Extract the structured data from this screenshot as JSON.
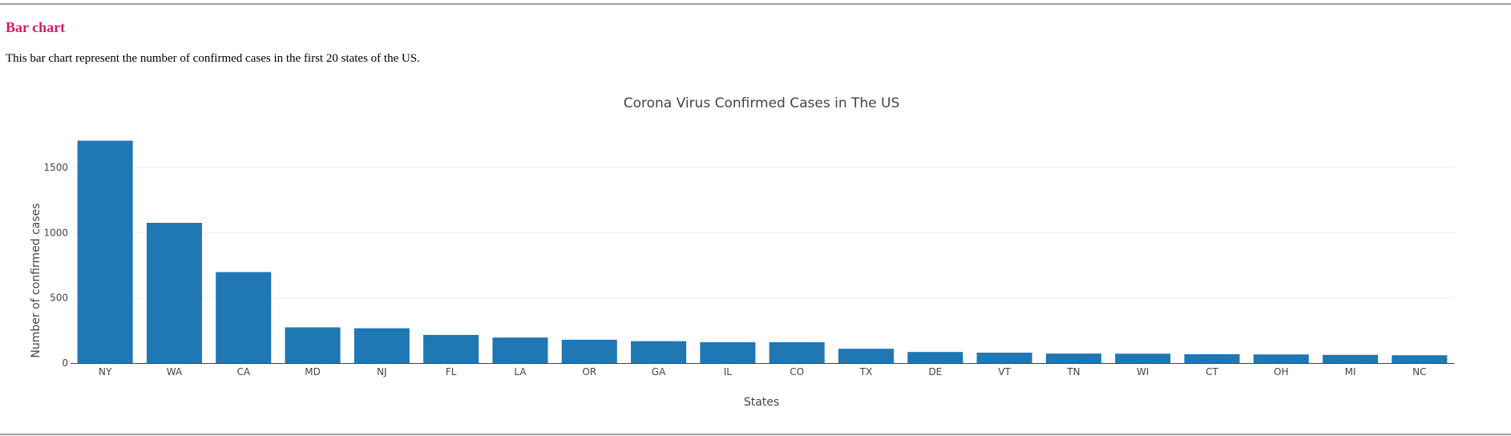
{
  "section": {
    "title": "Bar chart",
    "description": "This bar chart represent the number of confirmed cases in the first 20 states of the US."
  },
  "colors": {
    "bar": "#1f77b4",
    "title_text": "#444444",
    "section_title": "#d81b60",
    "grid": "#eeeeee"
  },
  "chart_data": {
    "type": "bar",
    "title": "Corona Virus Confirmed Cases in The US",
    "xlabel": "States",
    "ylabel": "Number of confirmed cases",
    "ylim": [
      0,
      1900
    ],
    "yticks": [
      0,
      500,
      1000,
      1500
    ],
    "grid": true,
    "categories": [
      "NY",
      "WA",
      "CA",
      "MD",
      "NJ",
      "FL",
      "LA",
      "OR",
      "GA",
      "IL",
      "CO",
      "TX",
      "DE",
      "VT",
      "TN",
      "WI",
      "CT",
      "OH",
      "MI",
      "NC"
    ],
    "values": [
      1706,
      1076,
      698,
      274,
      267,
      216,
      196,
      179,
      168,
      160,
      160,
      110,
      85,
      80,
      73,
      72,
      68,
      66,
      63,
      60
    ]
  }
}
